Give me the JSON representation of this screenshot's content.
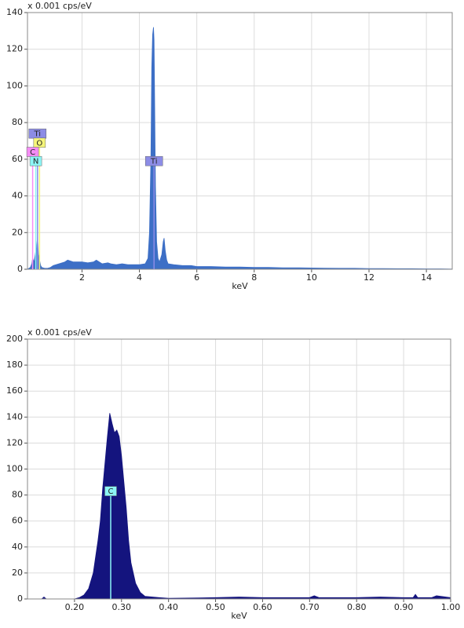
{
  "chart_data": [
    {
      "type": "area",
      "y_axis_label": "x 0.001 cps/eV",
      "x_axis_label": "keV",
      "color": "#3d6fc6",
      "grid": true,
      "xlim": [
        0.1,
        14.9
      ],
      "ylim": [
        0,
        140
      ],
      "xticks": [
        2,
        4,
        6,
        8,
        10,
        12,
        14
      ],
      "yticks": [
        0,
        20,
        40,
        60,
        80,
        100,
        120,
        140
      ],
      "x": [
        0.1,
        0.2,
        0.25,
        0.28,
        0.33,
        0.39,
        0.42,
        0.45,
        0.48,
        0.52,
        0.56,
        0.6,
        0.7,
        0.8,
        0.9,
        1.0,
        1.2,
        1.4,
        1.5,
        1.7,
        1.9,
        2.0,
        2.2,
        2.4,
        2.5,
        2.7,
        2.9,
        3.0,
        3.2,
        3.4,
        3.6,
        3.8,
        4.0,
        4.2,
        4.3,
        4.35,
        4.4,
        4.43,
        4.46,
        4.49,
        4.51,
        4.53,
        4.56,
        4.6,
        4.65,
        4.7,
        4.78,
        4.83,
        4.86,
        4.9,
        4.95,
        5.0,
        5.2,
        5.5,
        5.8,
        6.0,
        6.5,
        7.0,
        7.5,
        8.0,
        8.5,
        9.0,
        9.5,
        10.0,
        10.5,
        11.0,
        11.5,
        12.0,
        12.5,
        13.0,
        13.5,
        14.0,
        14.5,
        14.9
      ],
      "values": [
        0,
        1,
        3,
        6,
        4,
        10,
        12,
        18,
        8,
        5,
        2,
        1,
        0.5,
        0.5,
        1,
        2,
        3,
        4,
        5,
        4,
        4,
        4,
        3.5,
        4,
        5,
        3,
        3.5,
        3,
        2.5,
        3,
        2.5,
        2.5,
        2.5,
        3,
        6,
        20,
        60,
        110,
        128,
        132,
        125,
        95,
        45,
        15,
        6,
        4,
        8,
        15,
        17,
        10,
        5,
        3,
        2.5,
        2,
        2,
        1.5,
        1.5,
        1.2,
        1.2,
        1,
        1,
        0.8,
        0.8,
        0.7,
        0.6,
        0.5,
        0.5,
        0.4,
        0.4,
        0.3,
        0.3,
        0.2,
        0.2,
        0.1
      ],
      "markers": [
        {
          "label": "Ti",
          "x": 0.45,
          "height": 74,
          "color": "#8c8ce6"
        },
        {
          "label": "O",
          "x": 0.52,
          "height": 69,
          "color": "#f5f57a"
        },
        {
          "label": "C",
          "x": 0.28,
          "height": 64,
          "color": "#f58cf5"
        },
        {
          "label": "N",
          "x": 0.39,
          "height": 59,
          "color": "#8cf5f5"
        },
        {
          "label": "Ti",
          "x": 4.51,
          "height": 59,
          "color": "#8c8ce6"
        }
      ]
    },
    {
      "type": "area",
      "y_axis_label": "x 0.001 cps/eV",
      "x_axis_label": "keV",
      "color": "#14147e",
      "grid": true,
      "xlim": [
        0.1,
        1.0
      ],
      "ylim": [
        0,
        200
      ],
      "xticks": [
        {
          "value": 0.2,
          "label": "0.20"
        },
        {
          "value": 0.3,
          "label": "0.30"
        },
        {
          "value": 0.4,
          "label": "0.40"
        },
        {
          "value": 0.5,
          "label": "0.50"
        },
        {
          "value": 0.6,
          "label": "0.60"
        },
        {
          "value": 0.7,
          "label": "0.70"
        },
        {
          "value": 0.8,
          "label": "0.80"
        },
        {
          "value": 0.9,
          "label": "0.90"
        },
        {
          "value": 1.0,
          "label": "1.00"
        }
      ],
      "yticks": [
        0,
        20,
        40,
        60,
        80,
        100,
        120,
        140,
        160,
        180,
        200
      ],
      "x": [
        0.1,
        0.13,
        0.135,
        0.14,
        0.2,
        0.21,
        0.22,
        0.23,
        0.24,
        0.25,
        0.255,
        0.26,
        0.265,
        0.27,
        0.275,
        0.28,
        0.285,
        0.29,
        0.295,
        0.3,
        0.305,
        0.31,
        0.315,
        0.32,
        0.33,
        0.34,
        0.35,
        0.38,
        0.4,
        0.5,
        0.55,
        0.6,
        0.7,
        0.71,
        0.72,
        0.8,
        0.85,
        0.9,
        0.92,
        0.925,
        0.93,
        0.96,
        0.97,
        1.0
      ],
      "values": [
        0,
        0,
        1.5,
        0,
        0,
        1,
        3,
        8,
        20,
        45,
        60,
        85,
        105,
        125,
        143,
        135,
        128,
        130,
        125,
        110,
        90,
        70,
        45,
        28,
        12,
        5,
        2,
        1,
        0.5,
        1,
        1.5,
        1,
        1,
        2.5,
        1,
        1,
        1.5,
        1,
        1,
        3.5,
        1,
        1,
        2.5,
        1
      ],
      "markers": [
        {
          "label": "C",
          "x": 0.277,
          "height": 83,
          "color": "#8cf5f5"
        }
      ]
    }
  ]
}
